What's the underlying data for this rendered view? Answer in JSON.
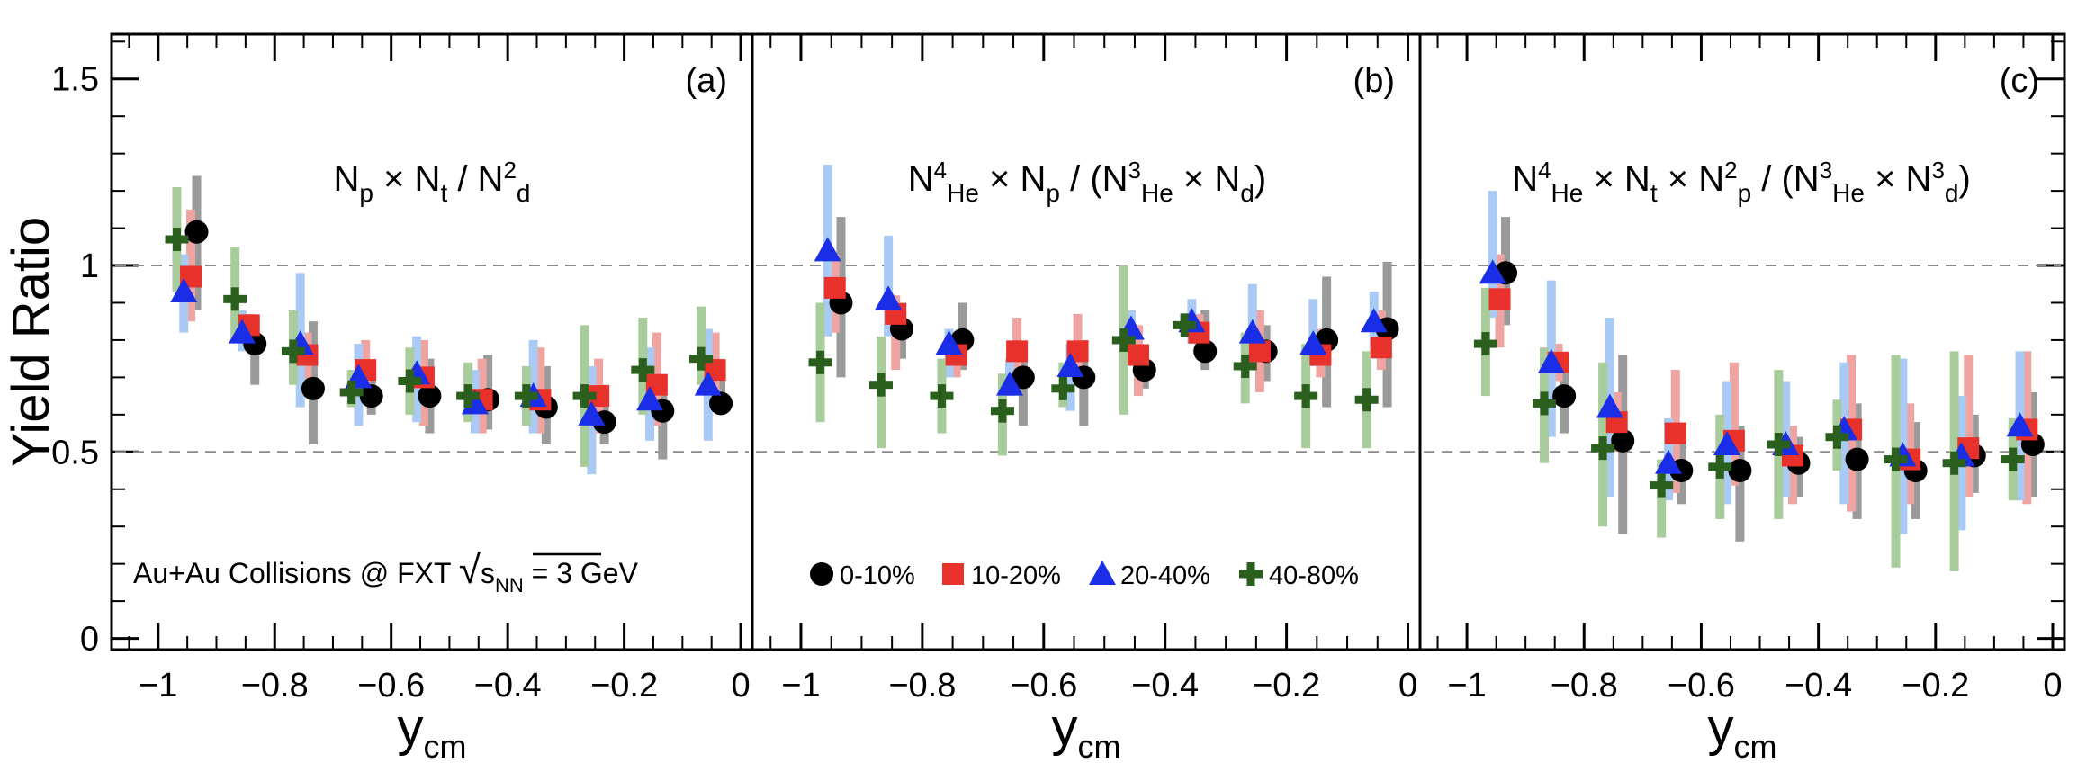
{
  "chart_data": {
    "type": "scatter",
    "ylabel": "Yield Ratio",
    "xlabel": {
      "main": "y",
      "sub": "cm"
    },
    "xlim": [
      -1.08,
      0.02
    ],
    "ylim": [
      -0.03,
      1.62
    ],
    "x_ticks": [
      -1,
      -0.8,
      -0.6,
      -0.4,
      -0.2,
      0
    ],
    "x_tick_labels": [
      "−1",
      "−0.8",
      "−0.6",
      "−0.4",
      "−0.2",
      "0"
    ],
    "y_ticks": [
      0,
      0.5,
      1,
      1.5
    ],
    "y_tick_labels": [
      "0",
      "0.5",
      "1",
      "1.5"
    ],
    "reference_lines": [
      0.5,
      1.0
    ],
    "x_centers": [
      -0.95,
      -0.85,
      -0.75,
      -0.65,
      -0.55,
      -0.45,
      -0.35,
      -0.25,
      -0.15,
      -0.05
    ],
    "series_styles": [
      {
        "marker": "circle",
        "color": "#000000",
        "sys_color": "#9a9a9a",
        "offset": 0.016
      },
      {
        "marker": "square",
        "color": "#e8312a",
        "sys_color": "#f0a4a2",
        "offset": 0.006
      },
      {
        "marker": "triangle",
        "color": "#1a2ee8",
        "sys_color": "#a9caf4",
        "offset": -0.006
      },
      {
        "marker": "cross",
        "color": "#2a5f1e",
        "sys_color": "#a9cc9c",
        "offset": -0.018
      }
    ],
    "legend": {
      "placement": "bottom of panel (b)",
      "entries": [
        "0-10%",
        "10-20%",
        "20-40%",
        "40-80%"
      ]
    },
    "annotation": {
      "prefix": "Au+Au Collisions @ FXT ",
      "sqrt": "√",
      "s": "s",
      "sub": "NN",
      "suffix": " = 3 GeV"
    },
    "panels": [
      {
        "label": "(a)",
        "formula": [
          {
            "t": "N"
          },
          {
            "t": "p",
            "s": "sub"
          },
          {
            "t": " × N"
          },
          {
            "t": "t",
            "s": "sub"
          },
          {
            "t": " / N"
          },
          {
            "t": "2",
            "s": "supsub"
          },
          {
            "t": "d",
            "s": "sub"
          }
        ],
        "series": [
          {
            "name": "0-10%",
            "y": [
              1.09,
              0.79,
              0.67,
              0.65,
              0.65,
              0.64,
              0.62,
              0.58,
              0.61,
              0.63
            ],
            "ylo": [
              0.88,
              0.68,
              0.52,
              0.6,
              0.55,
              0.56,
              0.52,
              0.52,
              0.48,
              0.6
            ],
            "yhi": [
              1.24,
              0.83,
              0.85,
              0.7,
              0.75,
              0.76,
              0.73,
              0.68,
              0.68,
              0.7
            ]
          },
          {
            "name": "10-20%",
            "y": [
              0.97,
              0.84,
              0.76,
              0.72,
              0.7,
              0.64,
              0.64,
              0.65,
              0.68,
              0.72
            ],
            "ylo": [
              0.85,
              0.8,
              0.68,
              0.63,
              0.57,
              0.55,
              0.55,
              0.55,
              0.57,
              0.64
            ],
            "yhi": [
              1.15,
              0.87,
              0.82,
              0.8,
              0.8,
              0.75,
              0.78,
              0.75,
              0.82,
              0.82
            ]
          },
          {
            "name": "20-40%",
            "y": [
              0.93,
              0.82,
              0.79,
              0.7,
              0.71,
              0.63,
              0.65,
              0.6,
              0.64,
              0.68
            ],
            "ylo": [
              0.82,
              0.77,
              0.62,
              0.57,
              0.58,
              0.55,
              0.55,
              0.44,
              0.53,
              0.53
            ],
            "yhi": [
              1.03,
              0.88,
              0.98,
              0.79,
              0.81,
              0.72,
              0.8,
              0.73,
              0.78,
              0.83
            ]
          },
          {
            "name": "40-80%",
            "y": [
              1.07,
              0.91,
              0.77,
              0.66,
              0.69,
              0.65,
              0.65,
              0.65,
              0.72,
              0.75
            ],
            "ylo": [
              0.93,
              0.8,
              0.68,
              0.62,
              0.6,
              0.58,
              0.57,
              0.46,
              0.6,
              0.68
            ],
            "yhi": [
              1.21,
              1.05,
              0.88,
              0.72,
              0.78,
              0.74,
              0.73,
              0.84,
              0.86,
              0.89
            ]
          }
        ]
      },
      {
        "label": "(b)",
        "formula": [
          {
            "t": "N"
          },
          {
            "t": "4",
            "s": "supsub"
          },
          {
            "t": "He",
            "s": "sub"
          },
          {
            "t": " × N"
          },
          {
            "t": "p",
            "s": "sub"
          },
          {
            "t": " / (N"
          },
          {
            "t": "3",
            "s": "supsub"
          },
          {
            "t": "He",
            "s": "sub"
          },
          {
            "t": " × N"
          },
          {
            "t": "d",
            "s": "sub"
          },
          {
            "t": ")"
          }
        ],
        "series": [
          {
            "name": "0-10%",
            "y": [
              0.9,
              0.83,
              0.8,
              0.7,
              0.7,
              0.72,
              0.77,
              0.77,
              0.8,
              0.83
            ],
            "ylo": [
              0.7,
              0.75,
              0.72,
              0.57,
              0.57,
              0.67,
              0.72,
              0.69,
              0.62,
              0.62
            ],
            "yhi": [
              1.13,
              0.9,
              0.9,
              0.78,
              0.8,
              0.77,
              0.88,
              0.84,
              0.97,
              1.01
            ]
          },
          {
            "name": "10-20%",
            "y": [
              0.94,
              0.87,
              0.76,
              0.77,
              0.77,
              0.76,
              0.82,
              0.77,
              0.76,
              0.78
            ],
            "ylo": [
              0.82,
              0.72,
              0.7,
              0.68,
              0.68,
              0.65,
              0.76,
              0.66,
              0.7,
              0.72
            ],
            "yhi": [
              1.03,
              0.92,
              0.82,
              0.86,
              0.87,
              0.84,
              0.87,
              0.88,
              0.83,
              0.88
            ]
          },
          {
            "name": "20-40%",
            "y": [
              1.04,
              0.91,
              0.79,
              0.68,
              0.73,
              0.83,
              0.85,
              0.82,
              0.79,
              0.85
            ],
            "ylo": [
              0.81,
              0.81,
              0.7,
              0.65,
              0.61,
              0.74,
              0.79,
              0.72,
              0.73,
              0.75
            ],
            "yhi": [
              1.27,
              1.08,
              0.83,
              0.75,
              0.79,
              0.88,
              0.91,
              0.95,
              0.91,
              0.93
            ]
          },
          {
            "name": "40-80%",
            "y": [
              0.74,
              0.68,
              0.65,
              0.61,
              0.67,
              0.8,
              0.84,
              0.73,
              0.65,
              0.64
            ],
            "ylo": [
              0.58,
              0.51,
              0.55,
              0.49,
              0.62,
              0.6,
              0.82,
              0.63,
              0.51,
              0.51
            ],
            "yhi": [
              0.9,
              0.81,
              0.75,
              0.71,
              0.74,
              1.0,
              0.87,
              0.82,
              0.79,
              0.77
            ]
          }
        ]
      },
      {
        "label": "(c)",
        "formula": [
          {
            "t": "N"
          },
          {
            "t": "4",
            "s": "supsub"
          },
          {
            "t": "He",
            "s": "sub"
          },
          {
            "t": " × N"
          },
          {
            "t": "t",
            "s": "sub"
          },
          {
            "t": " × N"
          },
          {
            "t": "2",
            "s": "supsub"
          },
          {
            "t": "p",
            "s": "sub"
          },
          {
            "t": " / (N"
          },
          {
            "t": "3",
            "s": "supsub"
          },
          {
            "t": "He",
            "s": "sub"
          },
          {
            "t": " × N"
          },
          {
            "t": "3",
            "s": "supsub"
          },
          {
            "t": "d",
            "s": "sub"
          },
          {
            "t": ")"
          }
        ],
        "series": [
          {
            "name": "0-10%",
            "y": [
              0.98,
              0.65,
              0.53,
              0.45,
              0.45,
              0.47,
              0.48,
              0.45,
              0.49,
              0.52
            ],
            "ylo": [
              0.84,
              0.55,
              0.28,
              0.36,
              0.26,
              0.38,
              0.32,
              0.32,
              0.39,
              0.38
            ],
            "yhi": [
              1.13,
              0.75,
              0.76,
              0.56,
              0.57,
              0.54,
              0.63,
              0.58,
              0.6,
              0.66
            ]
          },
          {
            "name": "10-20%",
            "y": [
              0.91,
              0.74,
              0.58,
              0.55,
              0.53,
              0.49,
              0.56,
              0.48,
              0.51,
              0.56
            ],
            "ylo": [
              0.78,
              0.69,
              0.5,
              0.39,
              0.41,
              0.36,
              0.34,
              0.36,
              0.38,
              0.36
            ],
            "yhi": [
              1.03,
              0.79,
              0.66,
              0.72,
              0.74,
              0.57,
              0.76,
              0.63,
              0.76,
              0.77
            ]
          },
          {
            "name": "20-40%",
            "y": [
              0.98,
              0.74,
              0.62,
              0.47,
              0.52,
              0.52,
              0.56,
              0.49,
              0.49,
              0.57
            ],
            "ylo": [
              0.86,
              0.54,
              0.38,
              0.37,
              0.36,
              0.38,
              0.36,
              0.28,
              0.29,
              0.37
            ],
            "yhi": [
              1.2,
              0.96,
              0.86,
              0.59,
              0.69,
              0.69,
              0.74,
              0.75,
              0.65,
              0.77
            ]
          },
          {
            "name": "40-80%",
            "y": [
              0.79,
              0.63,
              0.51,
              0.41,
              0.46,
              0.52,
              0.54,
              0.48,
              0.47,
              0.48
            ],
            "ylo": [
              0.65,
              0.47,
              0.3,
              0.27,
              0.32,
              0.32,
              0.45,
              0.19,
              0.18,
              0.37
            ],
            "yhi": [
              0.94,
              0.78,
              0.74,
              0.48,
              0.6,
              0.72,
              0.64,
              0.76,
              0.77,
              0.59
            ]
          }
        ]
      }
    ]
  }
}
